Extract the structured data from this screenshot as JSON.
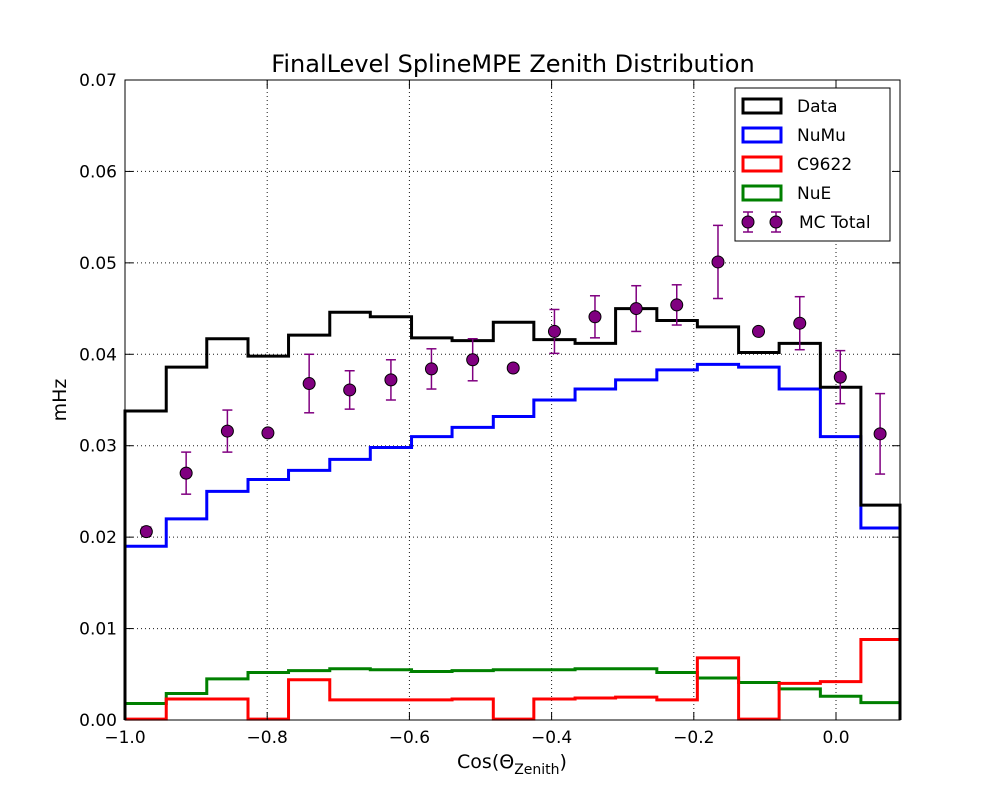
{
  "chart_data": {
    "type": "step-histogram",
    "title": "FinalLevel SplineMPE Zenith Distribution",
    "xlabel": "Cos(Θ",
    "xlabel_sub": "Zenith",
    "xlabel_close": ")",
    "ylabel": "mHz",
    "xlim": [
      -1.0,
      0.09
    ],
    "ylim": [
      0.0,
      0.07
    ],
    "xticks": [
      -1.0,
      -0.8,
      -0.6,
      -0.4,
      -0.2,
      0.0
    ],
    "xtick_labels": [
      "−1.0",
      "−0.8",
      "−0.6",
      "−0.4",
      "−0.2",
      "0.0"
    ],
    "yticks": [
      0.0,
      0.01,
      0.02,
      0.03,
      0.04,
      0.05,
      0.06,
      0.07
    ],
    "ytick_labels": [
      "0.00",
      "0.01",
      "0.02",
      "0.03",
      "0.04",
      "0.05",
      "0.06",
      "0.07"
    ],
    "grid": true,
    "legend_position": "top-right",
    "bin_edges": [
      -1.0,
      -0.942,
      -0.885,
      -0.827,
      -0.77,
      -0.712,
      -0.655,
      -0.597,
      -0.54,
      -0.482,
      -0.425,
      -0.367,
      -0.31,
      -0.252,
      -0.195,
      -0.137,
      -0.08,
      -0.022,
      0.035,
      0.09
    ],
    "series": [
      {
        "name": "Data",
        "color": "#000000",
        "values": [
          0.0338,
          0.0386,
          0.0417,
          0.0398,
          0.0421,
          0.0446,
          0.0441,
          0.0418,
          0.0415,
          0.0435,
          0.0416,
          0.0412,
          0.045,
          0.0437,
          0.043,
          0.0402,
          0.0412,
          0.0364,
          0.0235
        ]
      },
      {
        "name": "NuMu",
        "color": "#0000ff",
        "values": [
          0.019,
          0.022,
          0.025,
          0.0263,
          0.0273,
          0.0285,
          0.0298,
          0.031,
          0.032,
          0.0332,
          0.035,
          0.0362,
          0.0372,
          0.0383,
          0.0389,
          0.0386,
          0.0362,
          0.031,
          0.021
        ]
      },
      {
        "name": "C9622",
        "color": "#ff0000",
        "values": [
          0.0001,
          0.0023,
          0.0023,
          0.0001,
          0.0044,
          0.0022,
          0.0022,
          0.0022,
          0.0023,
          0.0001,
          0.0023,
          0.0024,
          0.0025,
          0.0022,
          0.0068,
          0.0001,
          0.004,
          0.0042,
          0.0088
        ]
      },
      {
        "name": "NuE",
        "color": "#008000",
        "values": [
          0.0018,
          0.0029,
          0.0045,
          0.0052,
          0.0054,
          0.0056,
          0.0055,
          0.0053,
          0.0054,
          0.0055,
          0.0055,
          0.0056,
          0.0056,
          0.0052,
          0.0046,
          0.0041,
          0.0034,
          0.0026,
          0.0019
        ]
      }
    ],
    "points": {
      "name": "MC Total",
      "color": "#800080",
      "x": [
        -0.97,
        -0.914,
        -0.856,
        -0.799,
        -0.741,
        -0.684,
        -0.626,
        -0.569,
        -0.511,
        -0.454,
        -0.396,
        -0.339,
        -0.281,
        -0.224,
        -0.166,
        -0.109,
        -0.051,
        0.006,
        0.062
      ],
      "y": [
        0.0206,
        0.027,
        0.0316,
        0.0314,
        0.0368,
        0.0361,
        0.0372,
        0.0384,
        0.0394,
        0.0385,
        0.0425,
        0.0441,
        0.045,
        0.0454,
        0.0501,
        0.0425,
        0.0434,
        0.0375,
        0.0313
      ],
      "yerr": [
        0.0005,
        0.0023,
        0.0023,
        0.0004,
        0.0032,
        0.0021,
        0.0022,
        0.0022,
        0.0023,
        0.0003,
        0.0024,
        0.0023,
        0.0025,
        0.0022,
        0.004,
        0.0003,
        0.0029,
        0.0029,
        0.0044
      ]
    }
  }
}
